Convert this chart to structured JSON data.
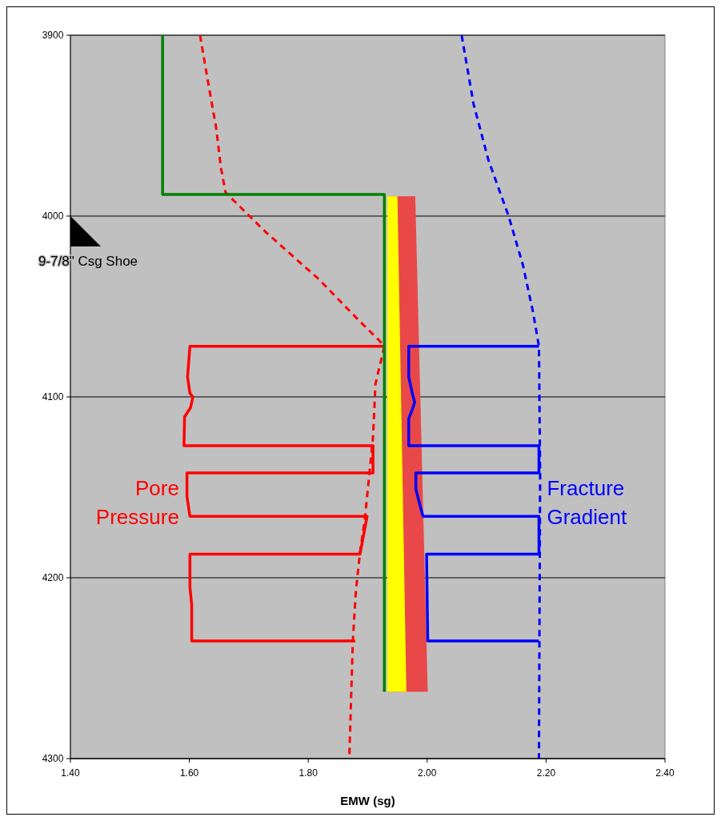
{
  "chart_data": {
    "type": "line",
    "xlabel": "EMW (sg)",
    "xlim": [
      1.4,
      2.4
    ],
    "xticks": [
      {
        "value": 1.4,
        "label": "1.40"
      },
      {
        "value": 1.6,
        "label": "1.60"
      },
      {
        "value": 1.8,
        "label": "1.80"
      },
      {
        "value": 2.0,
        "label": "2.00"
      },
      {
        "value": 2.2,
        "label": "2.20"
      },
      {
        "value": 2.4,
        "label": "2.40"
      }
    ],
    "ylim": [
      4300,
      3900
    ],
    "yticks": [
      3900,
      4000,
      4100,
      4200,
      4300
    ],
    "grid": "y",
    "annotations": [
      "9-7/8\" Csg Shoe"
    ],
    "series": [
      {
        "type": "area",
        "color": "#e84848",
        "x": [
          1.933,
          1.98,
          2.001,
          1.933
        ],
        "values": [
          3989,
          3989,
          4263,
          4263
        ]
      },
      {
        "type": "area",
        "color": "#ffff00",
        "x": [
          1.933,
          1.95,
          1.965,
          1.933
        ],
        "values": [
          3989,
          3989,
          4263,
          4263
        ]
      },
      {
        "color": "#ff0000",
        "line_style": "dashed",
        "x": [
          1.618,
          1.631,
          1.645,
          1.653,
          1.661,
          1.729,
          1.818,
          1.886,
          1.92,
          1.928,
          1.913,
          1.909,
          1.903,
          1.895,
          1.887,
          1.88,
          1.875,
          1.869
        ],
        "values": [
          3900,
          3925,
          3951,
          3973,
          3987,
          4009,
          4035,
          4058,
          4069,
          4072,
          4093,
          4122,
          4142,
          4168,
          4186,
          4208,
          4235,
          4300
        ]
      },
      {
        "color": "#0000ff",
        "line_style": "dashed",
        "x": [
          2.058,
          2.078,
          2.103,
          2.137,
          2.161,
          2.178,
          2.188,
          2.19,
          2.188
        ],
        "values": [
          3900,
          3938,
          3969,
          4000,
          4027,
          4053,
          4072,
          4142,
          4300
        ]
      },
      {
        "name": "Pore Pressure",
        "color": "#ff0000",
        "line_style": "solid",
        "x": [
          1.928,
          1.601,
          1.597,
          1.601,
          1.606,
          1.602,
          1.592,
          1.591,
          1.909,
          1.909,
          1.596,
          1.596,
          1.601,
          1.899,
          1.899,
          1.887,
          1.601,
          1.601,
          1.604,
          1.604,
          1.879
        ],
        "values": [
          4072,
          4072,
          4089,
          4098,
          4100,
          4106,
          4111,
          4127,
          4127,
          4142,
          4142,
          4155,
          4166,
          4166,
          4166,
          4187,
          4187,
          4205,
          4215,
          4235,
          4235
        ]
      },
      {
        "name": "Fracture Gradient",
        "color": "#0000ff",
        "line_style": "solid",
        "x": [
          2.188,
          1.969,
          1.969,
          1.975,
          1.979,
          1.975,
          1.969,
          1.969,
          2.188,
          2.188,
          1.981,
          1.981,
          1.988,
          1.993,
          2.188,
          2.188,
          1.999,
          2.001,
          2.188
        ],
        "values": [
          4072,
          4072,
          4089,
          4098,
          4103,
          4107,
          4112,
          4127,
          4127,
          4142,
          4142,
          4151,
          4160,
          4166,
          4166,
          4187,
          4187,
          4235,
          4235
        ]
      },
      {
        "color": "#008000",
        "line_style": "solid",
        "x": [
          1.555,
          1.555,
          1.928,
          1.928
        ],
        "values": [
          3900,
          3988,
          3988,
          4263
        ]
      }
    ]
  }
}
